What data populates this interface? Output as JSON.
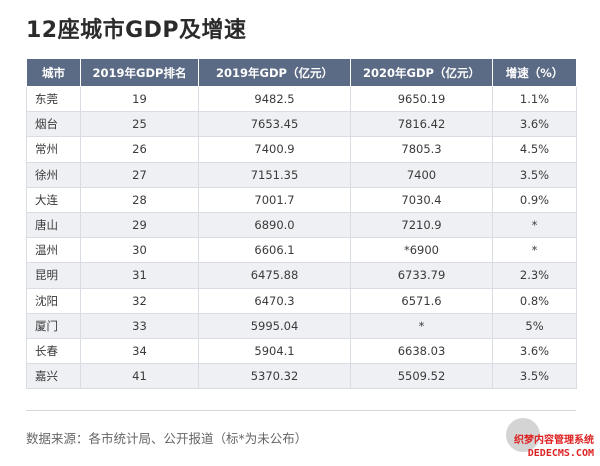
{
  "title": "12座城市GDP及增速",
  "table": {
    "headers": [
      "城市",
      "2019年GDP排名",
      "2019年GDP（亿元）",
      "2020年GDP（亿元）",
      "增速（%）"
    ],
    "rows": [
      [
        "东莞",
        "19",
        "9482.5",
        "9650.19",
        "1.1%"
      ],
      [
        "烟台",
        "25",
        "7653.45",
        "7816.42",
        "3.6%"
      ],
      [
        "常州",
        "26",
        "7400.9",
        "7805.3",
        "4.5%"
      ],
      [
        "徐州",
        "27",
        "7151.35",
        "7400",
        "3.5%"
      ],
      [
        "大连",
        "28",
        "7001.7",
        "7030.4",
        "0.9%"
      ],
      [
        "唐山",
        "29",
        "6890.0",
        "7210.9",
        "*"
      ],
      [
        "温州",
        "30",
        "6606.1",
        "*6900",
        "*"
      ],
      [
        "昆明",
        "31",
        "6475.88",
        "6733.79",
        "2.3%"
      ],
      [
        "沈阳",
        "32",
        "6470.3",
        "6571.6",
        "0.8%"
      ],
      [
        "厦门",
        "33",
        "5995.04",
        "*",
        "5%"
      ],
      [
        "长春",
        "34",
        "5904.1",
        "6638.03",
        "3.6%"
      ],
      [
        "嘉兴",
        "41",
        "5370.32",
        "5509.52",
        "3.5%"
      ]
    ]
  },
  "source": "数据来源：各市统计局、公开报道（标*为未公布）",
  "watermark": {
    "cn": "织梦内容管理系统",
    "en": "DEDECMS.COM"
  }
}
